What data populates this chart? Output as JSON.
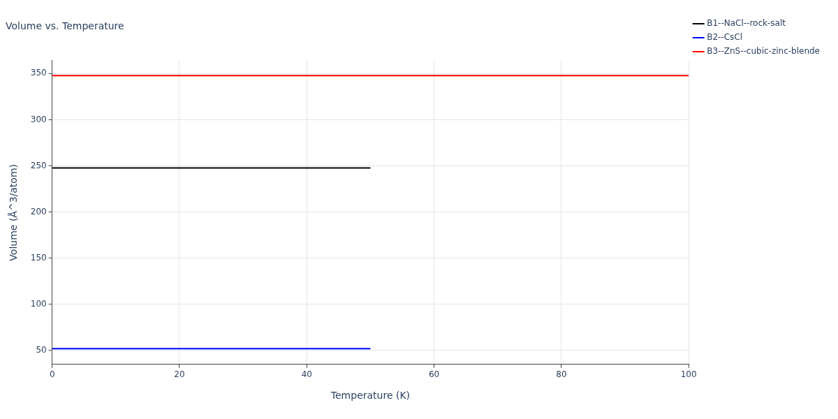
{
  "chart_data": {
    "type": "line",
    "title": "Volume vs. Temperature",
    "xlabel": "Temperature (K)",
    "ylabel": "Volume (Å^3/atom)",
    "xlim": [
      0,
      100
    ],
    "xticks": [
      0,
      20,
      40,
      60,
      80,
      100
    ],
    "ylim": [
      35,
      364
    ],
    "yticks": [
      50,
      100,
      150,
      200,
      250,
      300,
      350
    ],
    "grid": true,
    "legend": "top right",
    "marker": "none",
    "line_style": "solid",
    "series": [
      {
        "name": "B1--NaCl--rock-salt",
        "color": "#000000",
        "x": [
          0,
          50
        ],
        "values": [
          247.7,
          247.7
        ]
      },
      {
        "name": "B2--CsCl",
        "color": "#0000ff",
        "x": [
          0,
          50
        ],
        "values": [
          52,
          52
        ]
      },
      {
        "name": "B3--ZnS--cubic-zinc-blende",
        "color": "#ff0000",
        "x": [
          0,
          100
        ],
        "values": [
          347.7,
          347.7
        ]
      }
    ]
  }
}
